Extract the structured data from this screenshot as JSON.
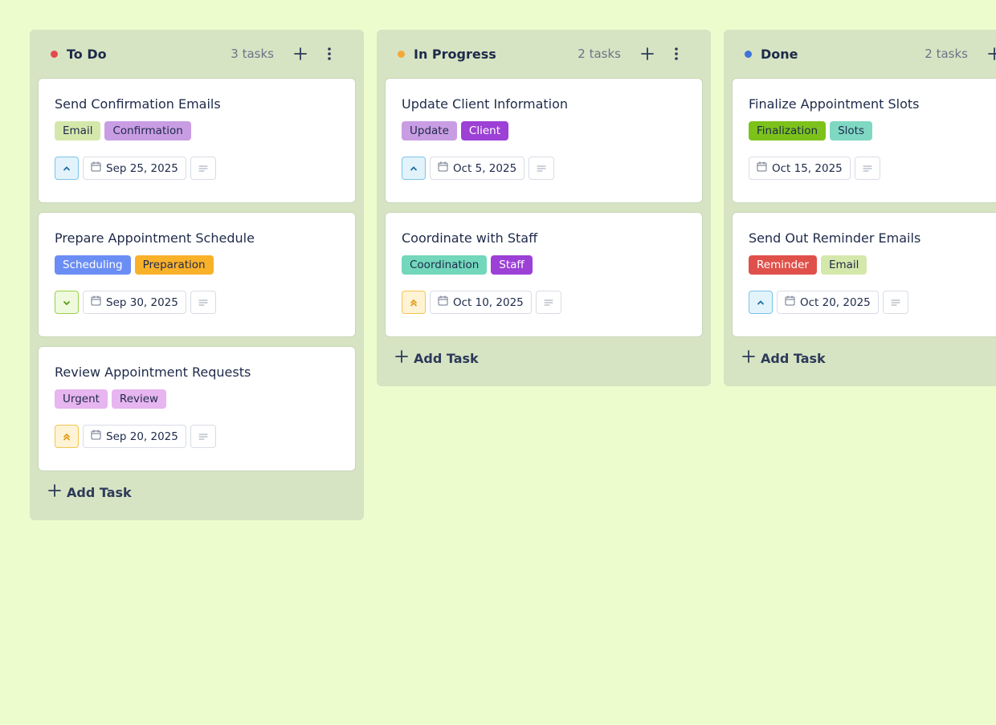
{
  "columns": [
    {
      "title": "To Do",
      "count": "3 tasks",
      "dot": "#e5484d",
      "add": "Add Task",
      "cards": [
        {
          "title": "Send Confirmation Emails",
          "priority_icon": "up",
          "date": "Sep 25, 2025",
          "tags": [
            {
              "label": "Email",
              "bg": "#d5e8ab",
              "fg": "#1e2a4a"
            },
            {
              "label": "Confirmation",
              "bg": "#c99de3",
              "fg": "#1e2a4a"
            }
          ]
        },
        {
          "title": "Prepare Appointment Schedule",
          "priority_icon": "down",
          "date": "Sep 30, 2025",
          "tags": [
            {
              "label": "Scheduling",
              "bg": "#6b8ef5",
              "fg": "#ffffff"
            },
            {
              "label": "Preparation",
              "bg": "#f9b12a",
              "fg": "#1e2a4a"
            }
          ]
        },
        {
          "title": "Review Appointment Requests",
          "priority_icon": "double-up",
          "date": "Sep 20, 2025",
          "tags": [
            {
              "label": "Urgent",
              "bg": "#e7b5ef",
              "fg": "#1e2a4a"
            },
            {
              "label": "Review",
              "bg": "#e7b5ef",
              "fg": "#1e2a4a"
            }
          ]
        }
      ]
    },
    {
      "title": "In Progress",
      "count": "2 tasks",
      "dot": "#f5a83a",
      "add": "Add Task",
      "cards": [
        {
          "title": "Update Client Information",
          "priority_icon": "up",
          "date": "Oct 5, 2025",
          "tags": [
            {
              "label": "Update",
              "bg": "#c99de3",
              "fg": "#1e2a4a"
            },
            {
              "label": "Client",
              "bg": "#9c40d6",
              "fg": "#ffffff"
            }
          ]
        },
        {
          "title": "Coordinate with Staff",
          "priority_icon": "double-up",
          "date": "Oct 10, 2025",
          "tags": [
            {
              "label": "Coordination",
              "bg": "#72d7bb",
              "fg": "#1e2a4a"
            },
            {
              "label": "Staff",
              "bg": "#9c40d6",
              "fg": "#ffffff"
            }
          ]
        }
      ]
    },
    {
      "title": "Done",
      "count": "2 tasks",
      "dot": "#3f73d8",
      "add": "Add Task",
      "cards": [
        {
          "title": "Finalize Appointment Slots",
          "date": "Oct 15, 2025",
          "tags": [
            {
              "label": "Finalization",
              "bg": "#7cc21b",
              "fg": "#1e2a4a"
            },
            {
              "label": "Slots",
              "bg": "#7fd8c2",
              "fg": "#1e2a4a"
            }
          ]
        },
        {
          "title": "Send Out Reminder Emails",
          "priority_icon": "up",
          "date": "Oct 20, 2025",
          "tags": [
            {
              "label": "Reminder",
              "bg": "#e0504a",
              "fg": "#ffffff"
            },
            {
              "label": "Email",
              "bg": "#d5e8ab",
              "fg": "#1e2a4a"
            }
          ]
        }
      ]
    }
  ]
}
